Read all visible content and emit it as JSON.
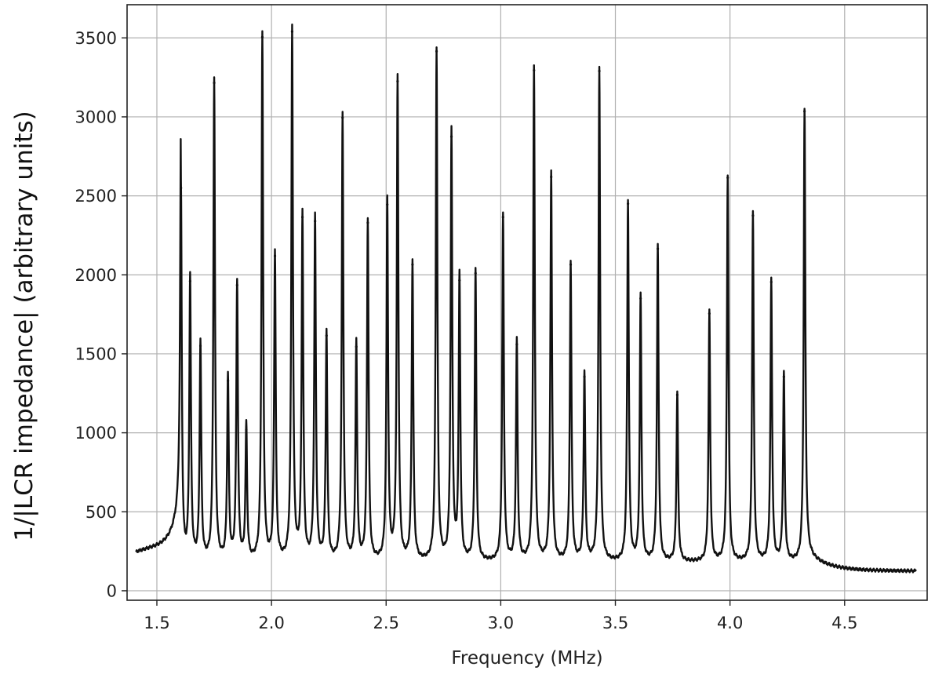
{
  "chart_data": {
    "type": "line",
    "title": "",
    "xlabel": "Frequency (MHz)",
    "ylabel": "1/|LCR impedance| (arbitrary units)",
    "xlim": [
      1.37,
      4.86
    ],
    "ylim": [
      -60,
      3710
    ],
    "x_ticks": [
      1.5,
      2.0,
      2.5,
      3.0,
      3.5,
      4.0,
      4.5
    ],
    "y_ticks": [
      0,
      500,
      1000,
      1500,
      2000,
      2500,
      3000,
      3500
    ],
    "grid": true,
    "legend": "none",
    "line_color": "#111111",
    "series": [
      {
        "x_range": [
          1.41,
          4.81
        ],
        "peaks": [
          {
            "x": 1.605,
            "y": 2550
          },
          {
            "x": 1.645,
            "y": 1960
          },
          {
            "x": 1.69,
            "y": 1550
          },
          {
            "x": 1.75,
            "y": 3215
          },
          {
            "x": 1.81,
            "y": 1330
          },
          {
            "x": 1.85,
            "y": 1935
          },
          {
            "x": 1.89,
            "y": 1020
          },
          {
            "x": 1.96,
            "y": 3505
          },
          {
            "x": 2.015,
            "y": 2120
          },
          {
            "x": 2.09,
            "y": 3540
          },
          {
            "x": 2.135,
            "y": 2365
          },
          {
            "x": 2.19,
            "y": 2340
          },
          {
            "x": 2.24,
            "y": 1615
          },
          {
            "x": 2.31,
            "y": 2995
          },
          {
            "x": 2.37,
            "y": 1545
          },
          {
            "x": 2.42,
            "y": 2330
          },
          {
            "x": 2.505,
            "y": 2445
          },
          {
            "x": 2.55,
            "y": 3225
          },
          {
            "x": 2.615,
            "y": 2065
          },
          {
            "x": 2.72,
            "y": 3415
          },
          {
            "x": 2.785,
            "y": 2875
          },
          {
            "x": 2.82,
            "y": 1965
          },
          {
            "x": 2.89,
            "y": 2010
          },
          {
            "x": 3.01,
            "y": 2365
          },
          {
            "x": 3.07,
            "y": 1560
          },
          {
            "x": 3.145,
            "y": 3295
          },
          {
            "x": 3.22,
            "y": 2620
          },
          {
            "x": 3.305,
            "y": 2065
          },
          {
            "x": 3.365,
            "y": 1355
          },
          {
            "x": 3.43,
            "y": 3290
          },
          {
            "x": 3.555,
            "y": 2450
          },
          {
            "x": 3.61,
            "y": 1850
          },
          {
            "x": 3.685,
            "y": 2165
          },
          {
            "x": 3.77,
            "y": 1240
          },
          {
            "x": 3.91,
            "y": 1755
          },
          {
            "x": 3.99,
            "y": 2615
          },
          {
            "x": 4.1,
            "y": 2375
          },
          {
            "x": 4.18,
            "y": 1955
          },
          {
            "x": 4.235,
            "y": 1355
          },
          {
            "x": 4.325,
            "y": 3035
          }
        ]
      }
    ]
  }
}
